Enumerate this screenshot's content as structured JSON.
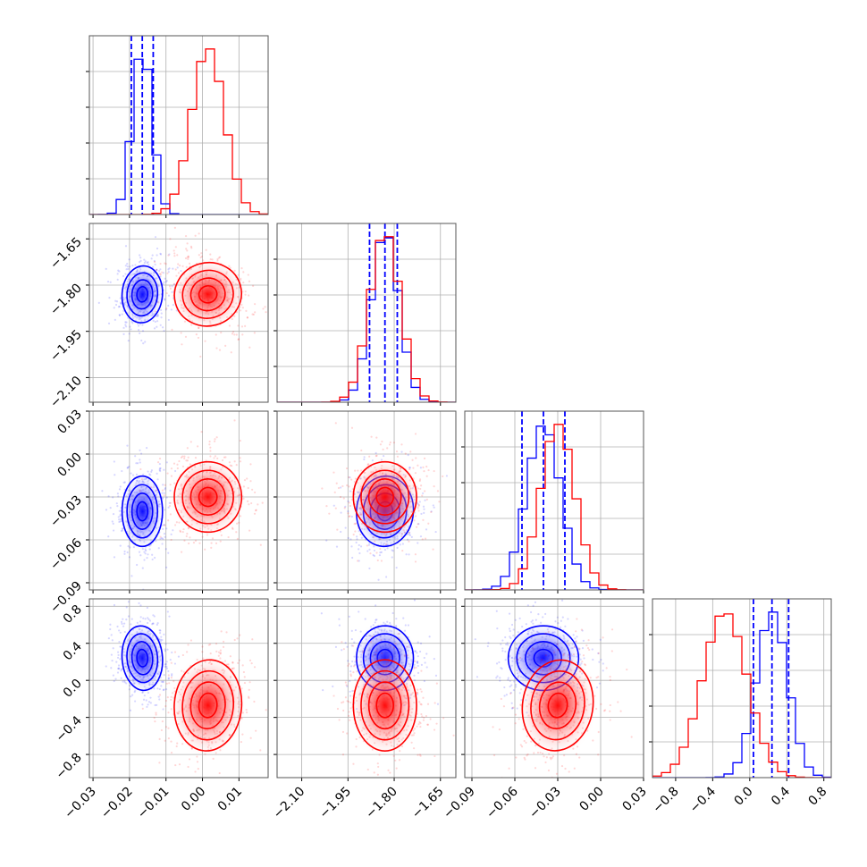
{
  "chart_data": {
    "type": "corner",
    "grid": true,
    "colors": {
      "series_a": "#0000ff",
      "series_b": "#ff0000"
    },
    "parameters": [
      {
        "range": [
          -0.031,
          0.018
        ],
        "ticks": [
          -0.03,
          -0.02,
          -0.01,
          0.0,
          0.01
        ],
        "tick_labels": [
          "−0.03",
          "−0.02",
          "−0.01",
          "0.00",
          "0.01"
        ]
      },
      {
        "range": [
          -2.18,
          -1.6
        ],
        "ticks": [
          -2.1,
          -1.95,
          -1.8,
          -1.65
        ],
        "tick_labels": [
          "−2.10",
          "−1.95",
          "−1.80",
          "−1.65"
        ]
      },
      {
        "range": [
          -0.095,
          0.03
        ],
        "ticks": [
          -0.09,
          -0.06,
          -0.03,
          0.0,
          0.03
        ],
        "tick_labels": [
          "−0.09",
          "−0.06",
          "−0.03",
          "0.00",
          "0.03"
        ]
      },
      {
        "range": [
          -1.05,
          0.88
        ],
        "ticks": [
          -0.8,
          -0.4,
          0.0,
          0.4,
          0.8
        ],
        "tick_labels": [
          "−0.8",
          "−0.4",
          "0.0",
          "0.4",
          "0.8"
        ]
      }
    ],
    "series": [
      {
        "color": "#0000ff",
        "means": [
          -0.0165,
          -1.83,
          -0.04,
          0.24
        ],
        "sigmas": [
          0.0027,
          0.045,
          0.012,
          0.17
        ],
        "correlations": {
          "1-0": 0.1,
          "2-0": 0.0,
          "2-1": 0.1,
          "3-0": -0.1,
          "3-1": 0.0,
          "3-2": 0.0
        },
        "quantiles": [
          [
            -0.0195,
            -0.0165,
            -0.0135
          ],
          [
            -1.88,
            -1.83,
            -1.79
          ],
          [
            -0.055,
            -0.04,
            -0.025
          ],
          [
            0.04,
            0.24,
            0.42
          ]
        ]
      },
      {
        "color": "#ff0000",
        "means": [
          0.0015,
          -1.83,
          -0.03,
          -0.27
        ],
        "sigmas": [
          0.0045,
          0.05,
          0.012,
          0.24
        ],
        "correlations": {
          "1-0": -0.35,
          "2-0": 0.0,
          "2-1": 0.0,
          "3-0": 0.1,
          "3-1": 0.0,
          "3-2": 0.2
        },
        "quantiles": null
      }
    ]
  }
}
